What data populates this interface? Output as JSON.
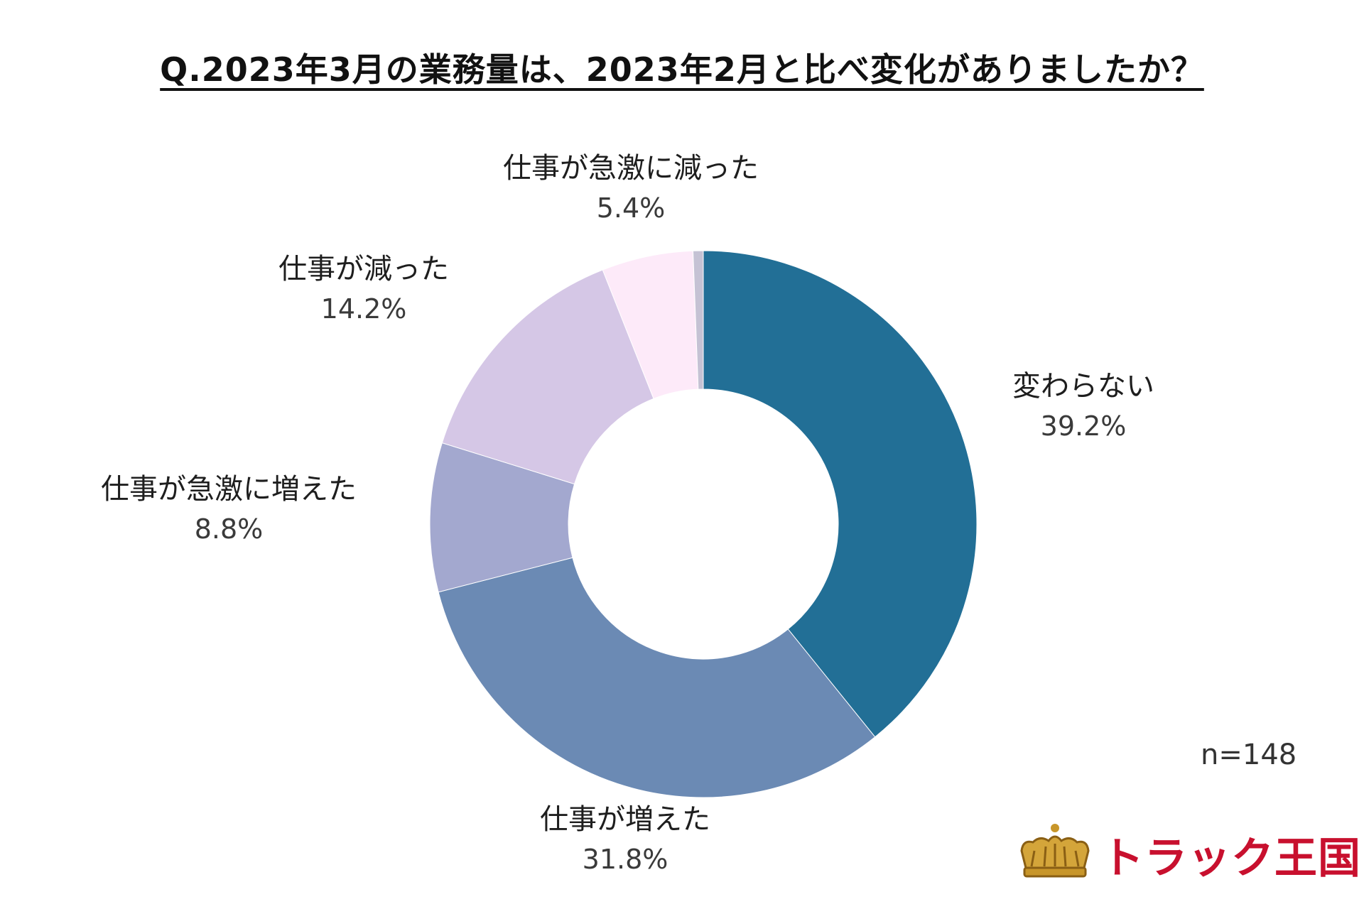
{
  "title": "Q.2023年3月の業務量は、2023年2月と比べ変化がありましたか？",
  "note": "n=148",
  "brand": {
    "logo_text": "トラック王国",
    "accent": "#c8102e",
    "crown": "#c8962a"
  },
  "chart_data": {
    "type": "pie",
    "donut": true,
    "title": "Q.2023年3月の業務量は、2023年2月と比べ変化がありましたか？",
    "slices": [
      {
        "label": "変わらない",
        "value": 39.2,
        "display": "39.2%",
        "color": "#226f96"
      },
      {
        "label": "仕事が増えた",
        "value": 31.8,
        "display": "31.8%",
        "color": "#6b8ab4"
      },
      {
        "label": "仕事が急激に増えた",
        "value": 8.8,
        "display": "8.8%",
        "color": "#a3a8cf"
      },
      {
        "label": "仕事が減った",
        "value": 14.2,
        "display": "14.2%",
        "color": "#d5c7e6"
      },
      {
        "label": "仕事が急激に減った",
        "value": 5.4,
        "display": "5.4%",
        "color": "#fdeaf9"
      },
      {
        "label": "",
        "value": 0.6,
        "display": "",
        "color": "#c5c2d4"
      }
    ]
  }
}
